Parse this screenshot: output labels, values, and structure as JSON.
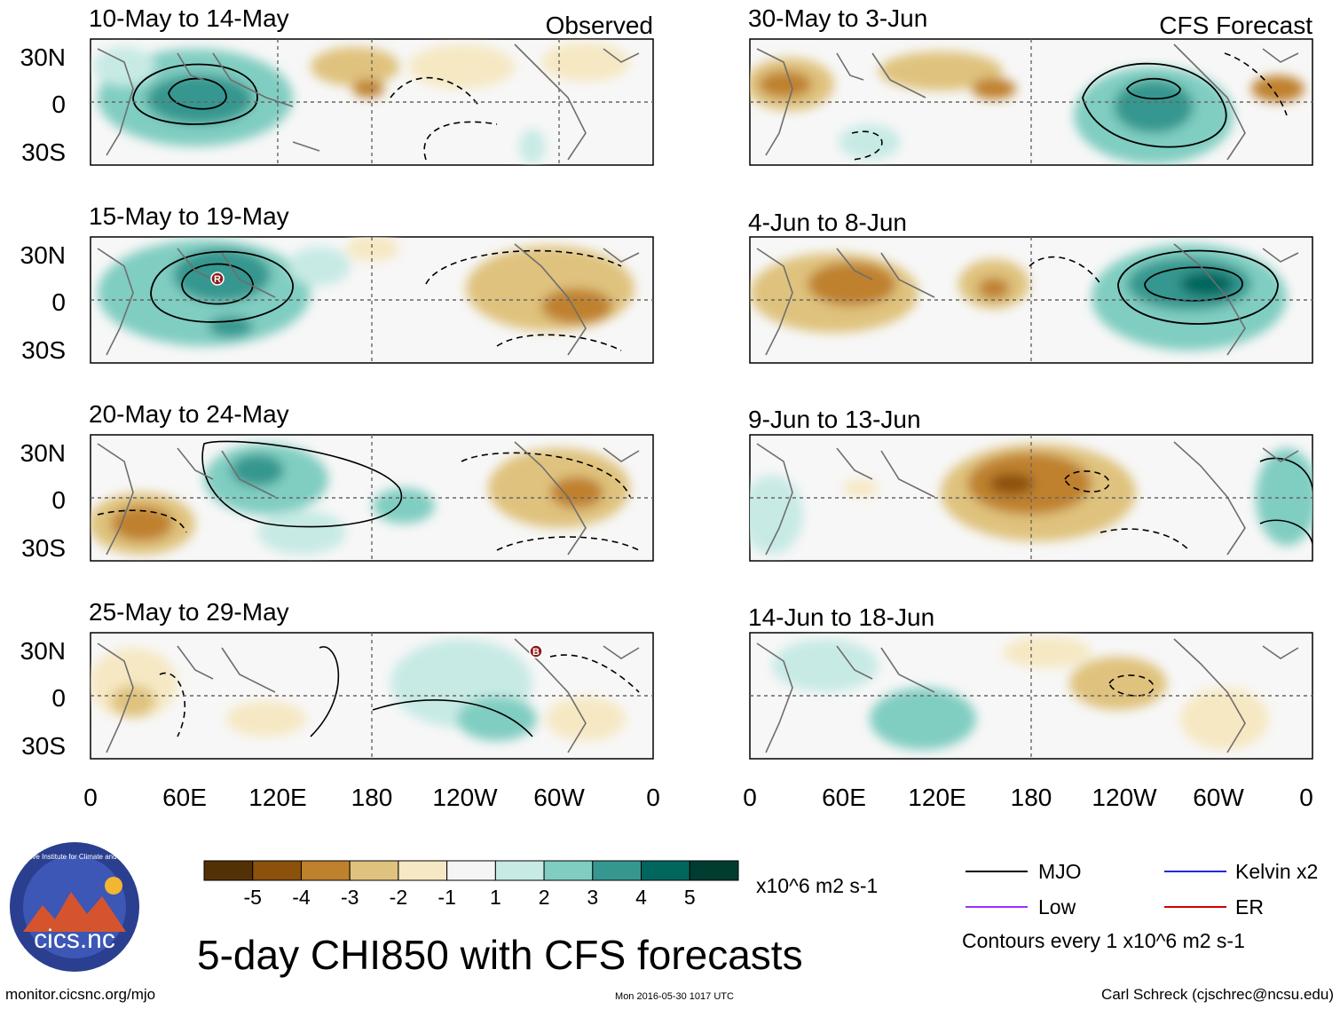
{
  "chart_data": {
    "type": "heatmap",
    "title": "5-day CHI850 with CFS forecasts",
    "units": "x10^6 m2 s-1",
    "colorbar": {
      "labels": [
        "-5",
        "-4",
        "-3",
        "-2",
        "-1",
        "1",
        "2",
        "3",
        "4",
        "5"
      ],
      "colors": [
        "#543005",
        "#8c510a",
        "#bf812d",
        "#dfc27d",
        "#f6e8c3",
        "#f5f5f5",
        "#c7eae5",
        "#80cdc1",
        "#35978f",
        "#01665e",
        "#003c30"
      ]
    },
    "x_ticks": [
      "0",
      "60E",
      "120E",
      "180",
      "120W",
      "60W",
      "0"
    ],
    "y_ticks": [
      "30N",
      "0",
      "30S"
    ],
    "columns": [
      {
        "header": "Observed",
        "panels": [
          {
            "title": "10-May to 14-May",
            "markers": []
          },
          {
            "title": "15-May to 19-May",
            "markers": [
              "R"
            ]
          },
          {
            "title": "20-May to 24-May",
            "markers": []
          },
          {
            "title": "25-May to 29-May",
            "markers": [
              "B"
            ]
          }
        ]
      },
      {
        "header": "CFS Forecast",
        "panels": [
          {
            "title": "30-May to 3-Jun",
            "markers": []
          },
          {
            "title": "4-Jun to 8-Jun",
            "markers": []
          },
          {
            "title": "9-Jun to 13-Jun",
            "markers": []
          },
          {
            "title": "14-Jun to 18-Jun",
            "markers": []
          }
        ]
      }
    ],
    "legend": [
      {
        "label": "MJO",
        "color": "#000000"
      },
      {
        "label": "Kelvin x2",
        "color": "#1f2bd6"
      },
      {
        "label": "Low",
        "color": "#9b30ff"
      },
      {
        "label": "ER",
        "color": "#d10000"
      }
    ],
    "contour_note": "Contours every 1 x10^6 m2 s-1"
  },
  "footer": {
    "logo_text": "cics.nc",
    "logo_arc_text": "Cooperative Institute for Climate and Satellites",
    "left": "monitor.cicsnc.org/mjo",
    "center": "Mon 2016-05-30 1017 UTC",
    "right": "Carl Schreck (cjschrec@ncsu.edu)"
  }
}
